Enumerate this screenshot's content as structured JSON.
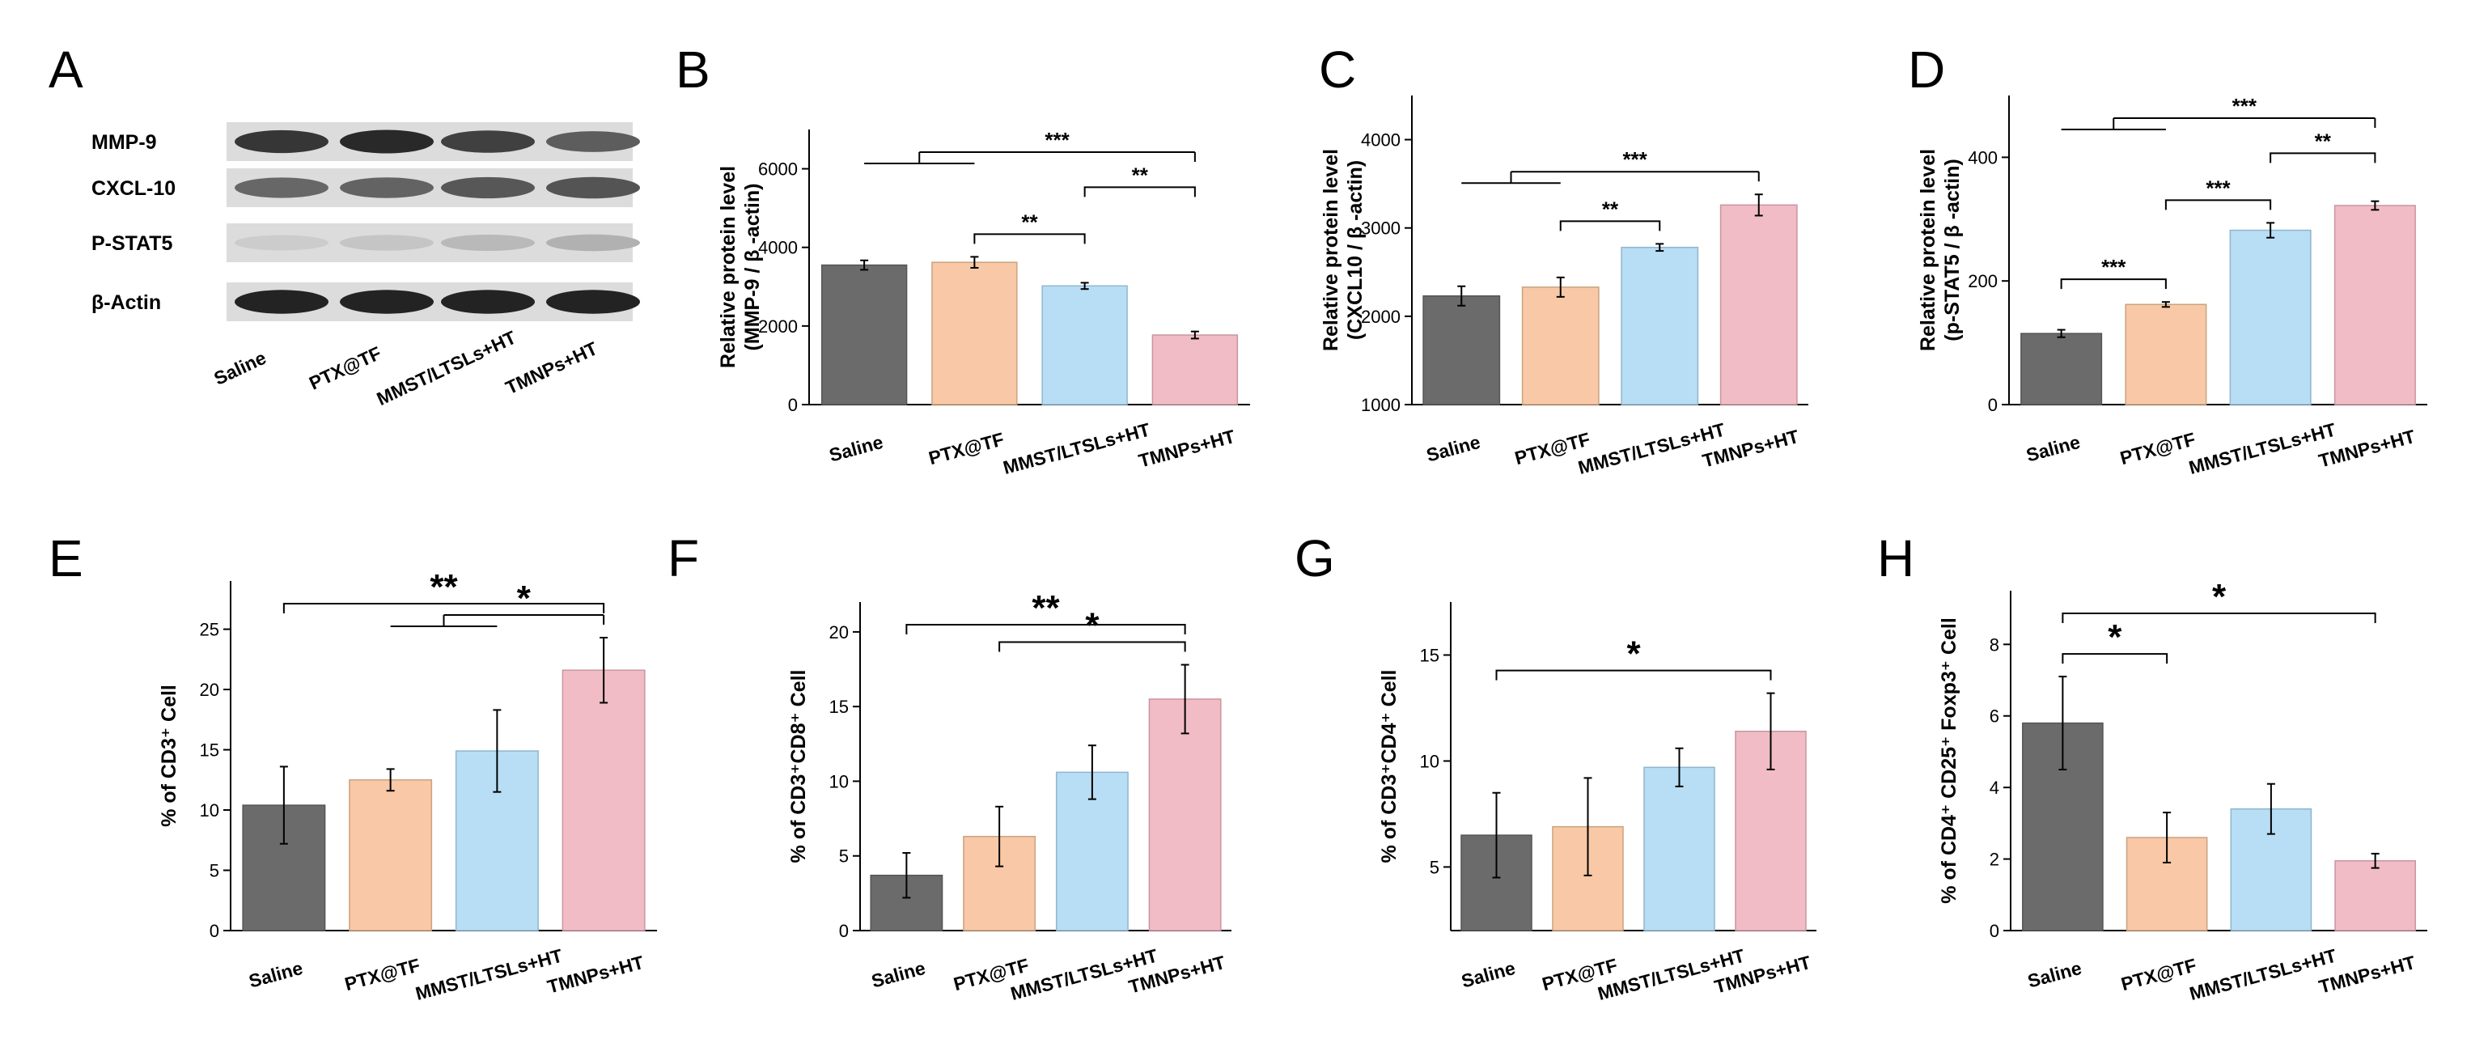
{
  "colors": {
    "saline": "#6b6b6b",
    "ptx": "#f9c8a6",
    "mmst": "#b8def5",
    "tmnps": "#f2bcc6",
    "axis": "#000000",
    "blot_bg": "#dcdcdc",
    "band": "#1e1e1e"
  },
  "western_blot": {
    "panel_label": "A",
    "proteins": [
      "MMP-9",
      "CXCL-10",
      "P-STAT5",
      "β-Actin"
    ],
    "lanes": [
      "Saline",
      "PTX@TF",
      "MMST/LTSLs+HT",
      "TMNPs+HT"
    ],
    "band_intensity": [
      [
        0.85,
        0.92,
        0.8,
        0.65
      ],
      [
        0.6,
        0.62,
        0.68,
        0.7
      ],
      [
        0.08,
        0.12,
        0.18,
        0.22
      ],
      [
        0.95,
        0.95,
        0.95,
        0.95
      ]
    ]
  },
  "chart_data": [
    {
      "type": "bar",
      "panel_label": "B",
      "categories": [
        "Saline",
        "PTX@TF",
        "MMST/LTSLs+HT",
        "TMNPs+HT"
      ],
      "values": [
        3550,
        3620,
        3020,
        1770
      ],
      "errors": [
        120,
        140,
        80,
        90
      ],
      "ylabel_lines": [
        "Relative protein level",
        "(MMP-9 / β -actin)"
      ],
      "ylim": [
        0,
        7000
      ],
      "yticks": [
        0,
        2000,
        4000,
        6000
      ],
      "significance": [
        {
          "groups": [
            0,
            1
          ],
          "to": 3,
          "label": "***"
        },
        {
          "from": 1,
          "to": 2,
          "label": "**"
        },
        {
          "from": 2,
          "to": 3,
          "label": "**"
        }
      ]
    },
    {
      "type": "bar",
      "panel_label": "C",
      "categories": [
        "Saline",
        "PTX@TF",
        "MMST/LTSLs+HT",
        "TMNPs+HT"
      ],
      "values": [
        2230,
        2330,
        2780,
        3260
      ],
      "errors": [
        110,
        110,
        40,
        120
      ],
      "ylabel_lines": [
        "Relative protein level",
        "(CXCL10 / β -actin)"
      ],
      "ylim": [
        1000,
        4500
      ],
      "yticks": [
        1000,
        2000,
        3000,
        4000
      ],
      "significance": [
        {
          "groups": [
            0,
            1
          ],
          "to": 3,
          "label": "***"
        },
        {
          "from": 1,
          "to": 2,
          "label": "**"
        }
      ]
    },
    {
      "type": "bar",
      "panel_label": "D",
      "categories": [
        "Saline",
        "PTX@TF",
        "MMST/LTSLs+HT",
        "TMNPs+HT"
      ],
      "values": [
        115,
        162,
        282,
        322
      ],
      "errors": [
        6,
        4,
        12,
        7
      ],
      "ylabel_lines": [
        "Relative protein level",
        "(p-STAT5 / β -actin)"
      ],
      "ylim": [
        0,
        500
      ],
      "yticks": [
        0,
        200,
        400
      ],
      "significance": [
        {
          "groups": [
            0,
            1
          ],
          "to": 3,
          "label": "***"
        },
        {
          "from": 0,
          "to": 1,
          "label": "***"
        },
        {
          "from": 1,
          "to": 2,
          "label": "***"
        },
        {
          "from": 2,
          "to": 3,
          "label": "**"
        }
      ]
    },
    {
      "type": "bar",
      "panel_label": "E",
      "categories": [
        "Saline",
        "PTX@TF",
        "MMST/LTSLs+HT",
        "TMNPs+HT"
      ],
      "values": [
        10.4,
        12.5,
        14.9,
        21.6
      ],
      "errors": [
        3.2,
        0.9,
        3.4,
        2.7
      ],
      "ylabel_lines": [
        "% of CD3⁺ Cell"
      ],
      "ylim": [
        0,
        29
      ],
      "yticks": [
        0,
        5,
        10,
        15,
        20,
        25
      ],
      "significance": [
        {
          "from": 0,
          "to": 3,
          "label": "**"
        },
        {
          "groups": [
            1,
            2
          ],
          "to": 3,
          "label": "*"
        }
      ]
    },
    {
      "type": "bar",
      "panel_label": "F",
      "categories": [
        "Saline",
        "PTX@TF",
        "MMST/LTSLs+HT",
        "TMNPs+HT"
      ],
      "values": [
        3.7,
        6.3,
        10.6,
        15.5
      ],
      "errors": [
        1.5,
        2.0,
        1.8,
        2.3
      ],
      "ylabel_lines": [
        "% of CD3⁺CD8⁺ Cell"
      ],
      "ylim": [
        0,
        22
      ],
      "yticks": [
        0,
        5,
        10,
        15,
        20
      ],
      "significance": [
        {
          "from": 0,
          "to": 3,
          "label": "**"
        },
        {
          "from": 1,
          "to": 3,
          "label": "*"
        }
      ]
    },
    {
      "type": "bar",
      "panel_label": "G",
      "categories": [
        "Saline",
        "PTX@TF",
        "MMST/LTSLs+HT",
        "TMNPs+HT"
      ],
      "values": [
        6.5,
        6.9,
        9.7,
        11.4
      ],
      "errors": [
        2.0,
        2.3,
        0.9,
        1.8
      ],
      "ylabel_lines": [
        "% of CD3⁺CD4⁺ Cell"
      ],
      "ylim": [
        2,
        17.5
      ],
      "yticks": [
        5,
        10,
        15
      ],
      "significance": [
        {
          "from": 0,
          "to": 3,
          "label": "*"
        }
      ]
    },
    {
      "type": "bar",
      "panel_label": "H",
      "categories": [
        "Saline",
        "PTX@TF",
        "MMST/LTSLs+HT",
        "TMNPs+HT"
      ],
      "values": [
        5.8,
        2.6,
        3.4,
        1.95
      ],
      "errors": [
        1.3,
        0.7,
        0.7,
        0.2
      ],
      "ylabel_lines": [
        "% of CD4⁺ CD25⁺ Foxp3⁺ Cell"
      ],
      "ylim": [
        0,
        9.5
      ],
      "yticks": [
        0,
        2,
        4,
        6,
        8
      ],
      "significance": [
        {
          "from": 0,
          "to": 1,
          "label": "*"
        },
        {
          "from": 0,
          "to": 3,
          "label": "*"
        }
      ]
    }
  ]
}
